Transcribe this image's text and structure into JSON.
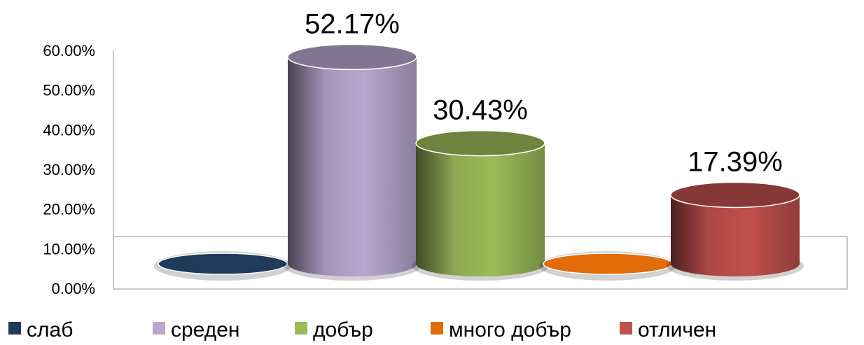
{
  "chart_data": {
    "type": "bar",
    "style": "3d-cylinder",
    "categories": [
      "слаб",
      "среден",
      "добър",
      "много добър",
      "отличен"
    ],
    "series": [
      {
        "name": "слаб",
        "value": 0.0,
        "label": "",
        "color": "#1F3A5A"
      },
      {
        "name": "среден",
        "value": 52.17,
        "label": "52.17%",
        "color": "#B8A7D0"
      },
      {
        "name": "добър",
        "value": 30.43,
        "label": "30.43%",
        "color": "#9BBB59"
      },
      {
        "name": "много добър",
        "value": 0.0,
        "label": "",
        "color": "#E36C0A"
      },
      {
        "name": "отличен",
        "value": 17.39,
        "label": "17.39%",
        "color": "#C0504D"
      }
    ],
    "y_ticks": [
      "0.00%",
      "10.00%",
      "20.00%",
      "30.00%",
      "40.00%",
      "50.00%",
      "60.00%"
    ],
    "ylim": [
      0,
      60
    ],
    "grid": false,
    "legend_position": "bottom",
    "title": "",
    "xlabel": "",
    "ylabel": ""
  }
}
